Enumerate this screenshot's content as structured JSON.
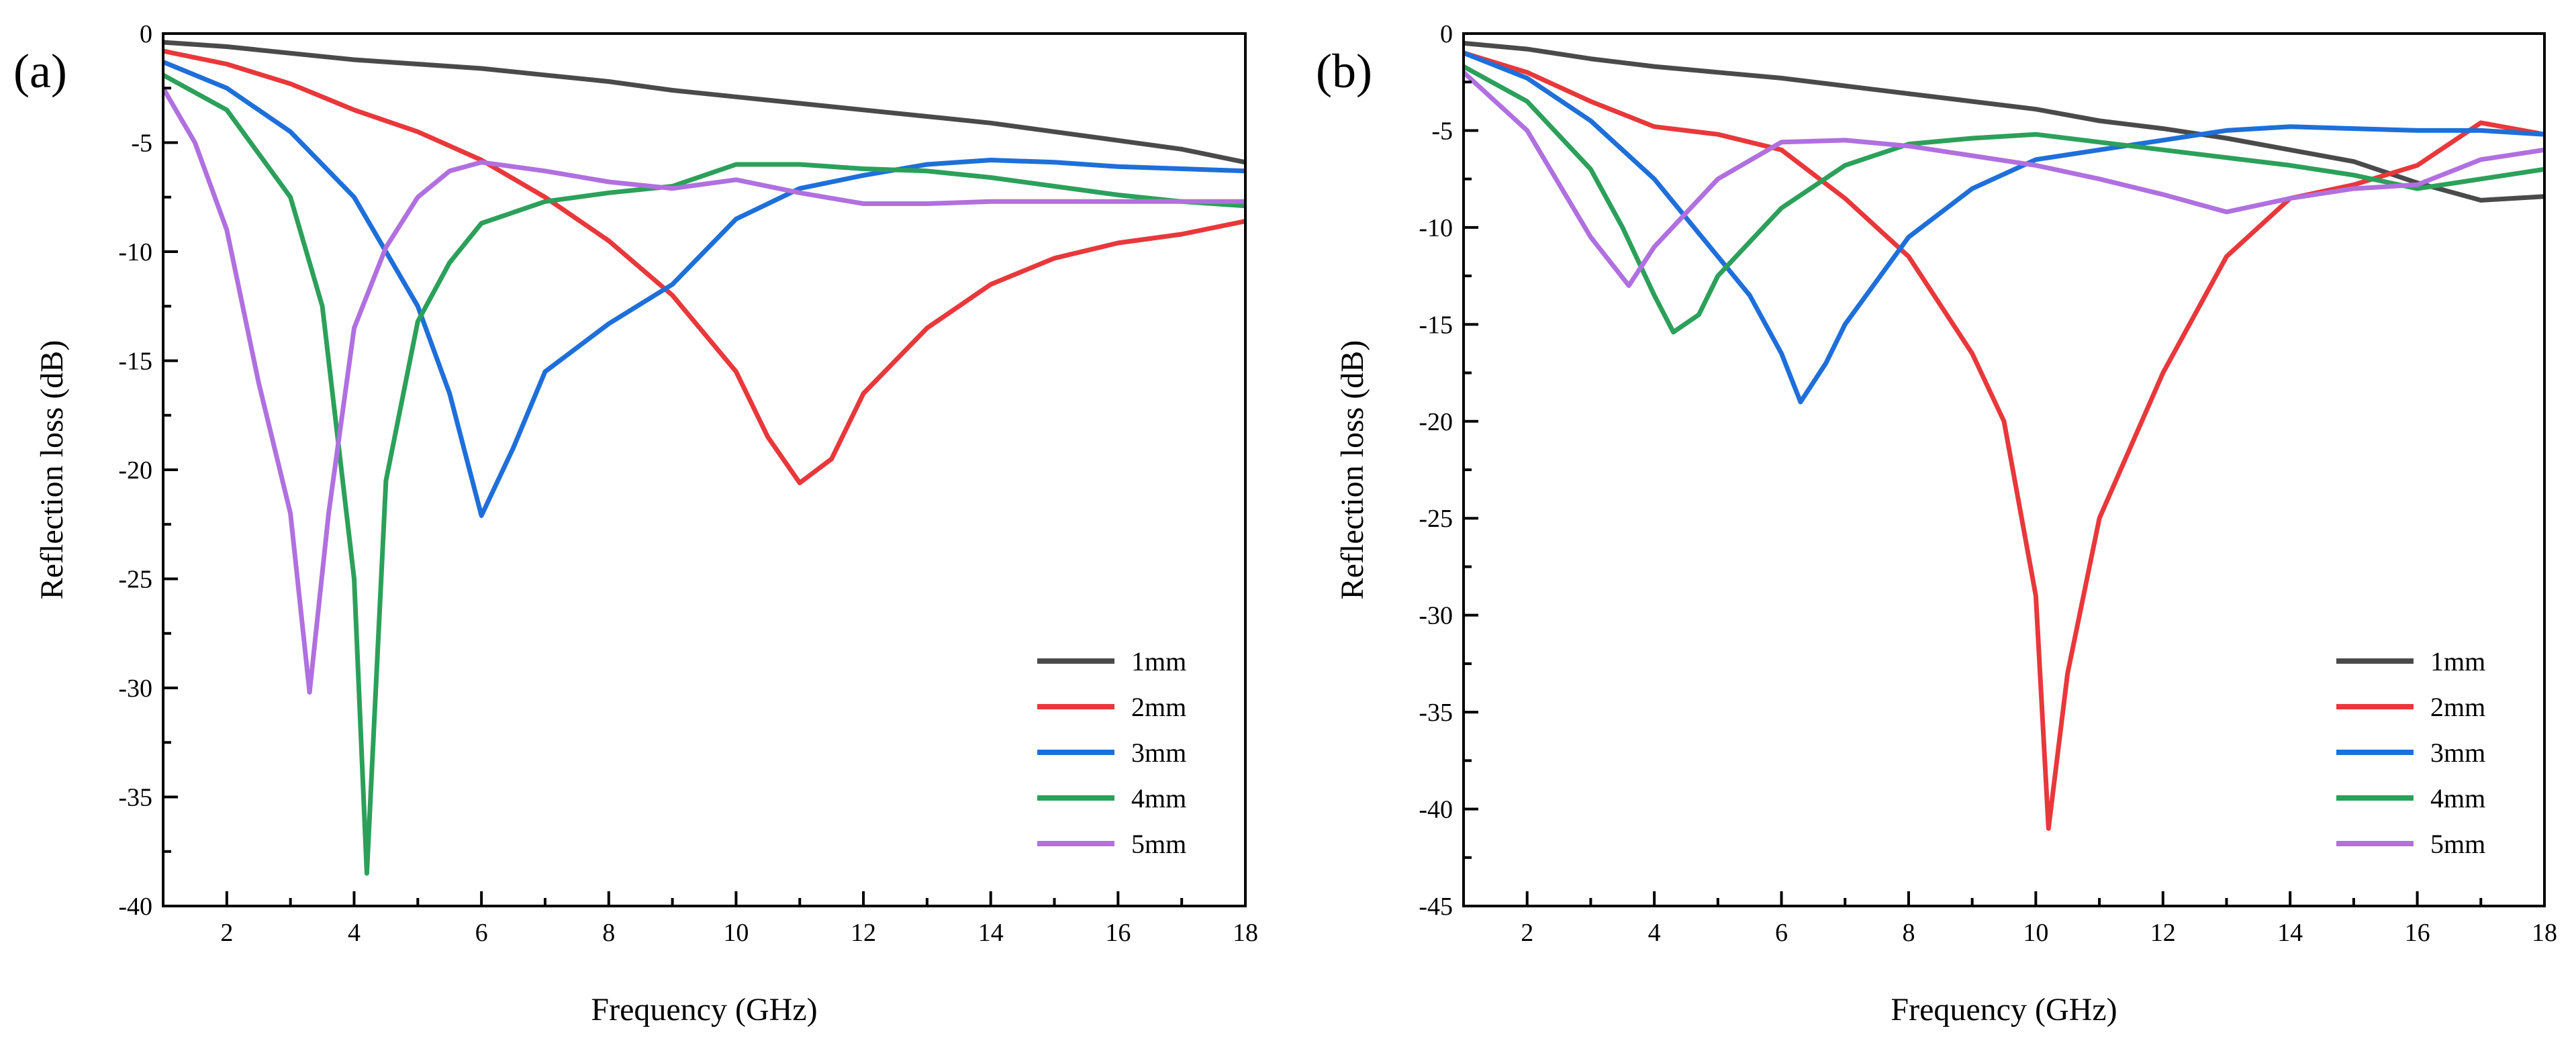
{
  "figure": {
    "panels": [
      {
        "label": "(a)",
        "xlabel": "Frequency (GHz)",
        "ylabel": "Reflection loss (dB)"
      },
      {
        "label": "(b)",
        "xlabel": "Frequency (GHz)",
        "ylabel": "Reflection loss (dB)"
      }
    ]
  },
  "chart_data": [
    {
      "type": "line",
      "title": "(a)",
      "xlabel": "Frequency (GHz)",
      "ylabel": "Reflection loss (dB)",
      "xlim": [
        1,
        18
      ],
      "ylim": [
        -40,
        0
      ],
      "xticks": [
        2,
        4,
        6,
        8,
        10,
        12,
        14,
        16,
        18
      ],
      "yticks": [
        0,
        -5,
        -10,
        -15,
        -20,
        -25,
        -30,
        -35,
        -40
      ],
      "legend_position": "bottom-right",
      "series": [
        {
          "name": "1mm",
          "color": "#4a4a4a",
          "x": [
            1,
            2,
            3,
            4,
            5,
            6,
            7,
            8,
            9,
            10,
            11,
            12,
            13,
            14,
            15,
            16,
            17,
            18
          ],
          "y": [
            -0.4,
            -0.6,
            -0.9,
            -1.2,
            -1.4,
            -1.6,
            -1.9,
            -2.2,
            -2.6,
            -2.9,
            -3.2,
            -3.5,
            -3.8,
            -4.1,
            -4.5,
            -4.9,
            -5.3,
            -5.9
          ]
        },
        {
          "name": "2mm",
          "color": "#e8383b",
          "x": [
            1,
            2,
            3,
            4,
            5,
            6,
            7,
            8,
            9,
            10,
            10.5,
            11,
            11.5,
            12,
            13,
            14,
            15,
            16,
            17,
            18
          ],
          "y": [
            -0.8,
            -1.4,
            -2.3,
            -3.5,
            -4.5,
            -5.8,
            -7.5,
            -9.5,
            -12,
            -15.5,
            -18.5,
            -20.6,
            -19.5,
            -16.5,
            -13.5,
            -11.5,
            -10.3,
            -9.6,
            -9.2,
            -8.6
          ]
        },
        {
          "name": "3mm",
          "color": "#1e6fd9",
          "x": [
            1,
            2,
            3,
            4,
            5,
            5.5,
            6,
            6.5,
            7,
            8,
            9,
            10,
            11,
            12,
            13,
            14,
            15,
            16,
            17,
            18
          ],
          "y": [
            -1.3,
            -2.5,
            -4.5,
            -7.5,
            -12.5,
            -16.5,
            -22.1,
            -19,
            -15.5,
            -13.3,
            -11.5,
            -8.5,
            -7.1,
            -6.5,
            -6.0,
            -5.8,
            -5.9,
            -6.1,
            -6.2,
            -6.3
          ]
        },
        {
          "name": "4mm",
          "color": "#2ca05a",
          "x": [
            1,
            2,
            3,
            3.5,
            4,
            4.2,
            4.5,
            5,
            5.5,
            6,
            7,
            8,
            9,
            10,
            11,
            12,
            13,
            14,
            15,
            16,
            17,
            18
          ],
          "y": [
            -1.9,
            -3.5,
            -7.5,
            -12.5,
            -25,
            -38.5,
            -20.5,
            -13.2,
            -10.5,
            -8.7,
            -7.7,
            -7.3,
            -7.0,
            -6.0,
            -6.0,
            -6.2,
            -6.3,
            -6.6,
            -7.0,
            -7.4,
            -7.7,
            -7.9
          ]
        },
        {
          "name": "5mm",
          "color": "#b070e0",
          "x": [
            1,
            1.5,
            2,
            2.5,
            3,
            3.3,
            3.6,
            4,
            4.5,
            5,
            5.5,
            6,
            7,
            8,
            9,
            10,
            11,
            12,
            13,
            14,
            15,
            16,
            17,
            18
          ],
          "y": [
            -2.5,
            -5,
            -9,
            -16,
            -22,
            -30.2,
            -22,
            -13.5,
            -9.8,
            -7.5,
            -6.3,
            -5.9,
            -6.3,
            -6.8,
            -7.1,
            -6.7,
            -7.3,
            -7.8,
            -7.8,
            -7.7,
            -7.7,
            -7.7,
            -7.7,
            -7.7
          ]
        }
      ]
    },
    {
      "type": "line",
      "title": "(b)",
      "xlabel": "Frequency (GHz)",
      "ylabel": "Reflection loss (dB)",
      "xlim": [
        1,
        18
      ],
      "ylim": [
        -45,
        0
      ],
      "xticks": [
        2,
        4,
        6,
        8,
        10,
        12,
        14,
        16,
        18
      ],
      "yticks": [
        0,
        -5,
        -10,
        -15,
        -20,
        -25,
        -30,
        -35,
        -40,
        -45
      ],
      "legend_position": "bottom-right",
      "series": [
        {
          "name": "1mm",
          "color": "#4a4a4a",
          "x": [
            1,
            2,
            3,
            4,
            5,
            6,
            7,
            8,
            9,
            10,
            11,
            12,
            13,
            14,
            15,
            16,
            17,
            18
          ],
          "y": [
            -0.5,
            -0.8,
            -1.3,
            -1.7,
            -2.0,
            -2.3,
            -2.7,
            -3.1,
            -3.5,
            -3.9,
            -4.5,
            -4.9,
            -5.4,
            -6.0,
            -6.6,
            -7.7,
            -8.6,
            -8.4
          ]
        },
        {
          "name": "2mm",
          "color": "#e8383b",
          "x": [
            1,
            2,
            3,
            4,
            5,
            6,
            7,
            8,
            9,
            9.5,
            10,
            10.2,
            10.5,
            11,
            12,
            13,
            14,
            15,
            16,
            17,
            18
          ],
          "y": [
            -1.0,
            -2.0,
            -3.5,
            -4.8,
            -5.2,
            -6.0,
            -8.5,
            -11.5,
            -16.5,
            -20,
            -29,
            -41,
            -33,
            -25,
            -17.5,
            -11.5,
            -8.5,
            -7.8,
            -6.8,
            -4.6,
            -5.2
          ]
        },
        {
          "name": "3mm",
          "color": "#1e6fd9",
          "x": [
            1,
            2,
            3,
            4,
            5,
            5.5,
            6,
            6.3,
            6.7,
            7,
            8,
            9,
            10,
            11,
            12,
            13,
            14,
            15,
            16,
            17,
            18
          ],
          "y": [
            -1.0,
            -2.3,
            -4.5,
            -7.5,
            -11.5,
            -13.5,
            -16.5,
            -19.0,
            -17,
            -15,
            -10.5,
            -8.0,
            -6.5,
            -6.0,
            -5.5,
            -5.0,
            -4.8,
            -4.9,
            -5.0,
            -5.0,
            -5.2
          ]
        },
        {
          "name": "4mm",
          "color": "#2ca05a",
          "x": [
            1,
            2,
            3,
            3.5,
            4,
            4.3,
            4.7,
            5,
            6,
            7,
            8,
            9,
            10,
            11,
            12,
            13,
            14,
            15,
            16,
            17,
            18
          ],
          "y": [
            -1.7,
            -3.5,
            -7.0,
            -10,
            -13.5,
            -15.4,
            -14.5,
            -12.5,
            -9.0,
            -6.8,
            -5.7,
            -5.4,
            -5.2,
            -5.6,
            -6.0,
            -6.4,
            -6.8,
            -7.3,
            -8.0,
            -7.5,
            -7.0
          ]
        },
        {
          "name": "5mm",
          "color": "#b070e0",
          "x": [
            1,
            2,
            3,
            3.6,
            4,
            5,
            6,
            7,
            8,
            9,
            10,
            11,
            12,
            13,
            14,
            15,
            16,
            17,
            18
          ],
          "y": [
            -2.0,
            -5.0,
            -10.5,
            -13.0,
            -11.0,
            -7.5,
            -5.6,
            -5.5,
            -5.8,
            -6.3,
            -6.8,
            -7.5,
            -8.3,
            -9.2,
            -8.5,
            -8.0,
            -7.8,
            -6.5,
            -6.0
          ]
        }
      ]
    }
  ]
}
